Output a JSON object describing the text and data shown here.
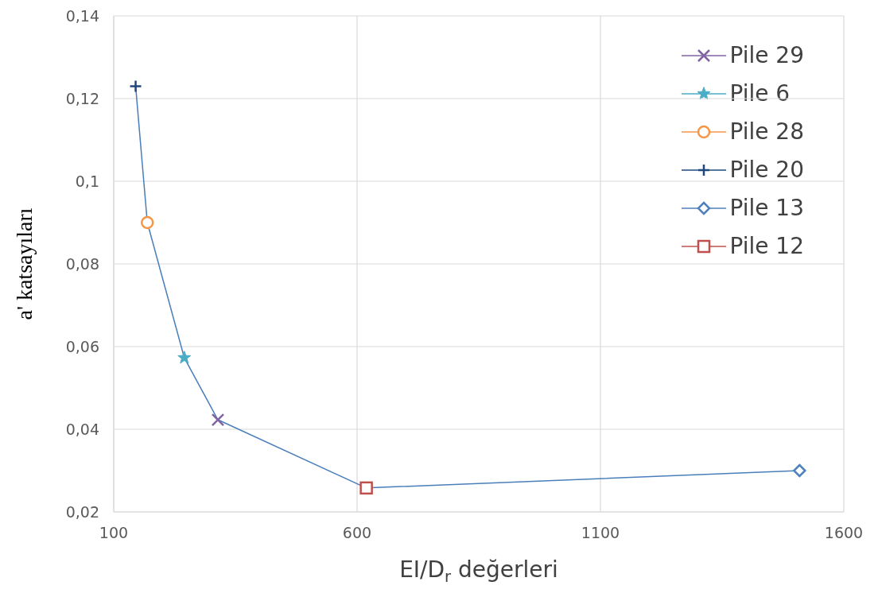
{
  "chart_data": {
    "type": "scatter",
    "xlabel": "EI/D$_{r}$ değerleri",
    "ylabel": "a' katsayıları",
    "xlim": [
      100,
      1600
    ],
    "xticks": [
      100,
      600,
      1100,
      1600
    ],
    "ylim": [
      0.02,
      0.14
    ],
    "yticks": [
      {
        "value": 0.02,
        "label": "0,02"
      },
      {
        "value": 0.04,
        "label": "0,04"
      },
      {
        "value": 0.06,
        "label": "0,06"
      },
      {
        "value": 0.08,
        "label": "0,08"
      },
      {
        "value": 0.1,
        "label": "0,1"
      },
      {
        "value": 0.12,
        "label": "0,12"
      },
      {
        "value": 0.14,
        "label": "0,14"
      }
    ],
    "grid": true,
    "legend": "top right",
    "series": [
      {
        "type": "line",
        "color": "#4a7ebb",
        "marker": "none",
        "x": [
          145,
          169,
          245,
          314,
          619,
          1509
        ],
        "values": [
          0.123,
          0.09,
          0.0573,
          0.0423,
          0.0258,
          0.03
        ]
      },
      {
        "type": "scatter",
        "name": "Pile 29",
        "color": "#8064a2",
        "marker": "x",
        "x": [
          314
        ],
        "values": [
          0.0423
        ]
      },
      {
        "type": "scatter",
        "name": "Pile 6",
        "color": "#4bacc6",
        "marker": "star",
        "x": [
          245
        ],
        "values": [
          0.0573
        ]
      },
      {
        "type": "scatter",
        "name": "Pile 28",
        "color": "#f79646",
        "marker": "circle",
        "x": [
          169
        ],
        "values": [
          0.09
        ]
      },
      {
        "type": "scatter",
        "name": "Pile 20",
        "color": "#1f497d",
        "marker": "cross",
        "x": [
          145
        ],
        "values": [
          0.123
        ]
      },
      {
        "type": "scatter",
        "name": "Pile 13",
        "color": "#4f81bd",
        "marker": "diamond",
        "x": [
          1509
        ],
        "values": [
          0.03
        ]
      },
      {
        "type": "scatter",
        "name": "Pile 12",
        "color": "#c0504d",
        "marker": "square",
        "x": [
          619
        ],
        "values": [
          0.0258
        ]
      }
    ]
  }
}
